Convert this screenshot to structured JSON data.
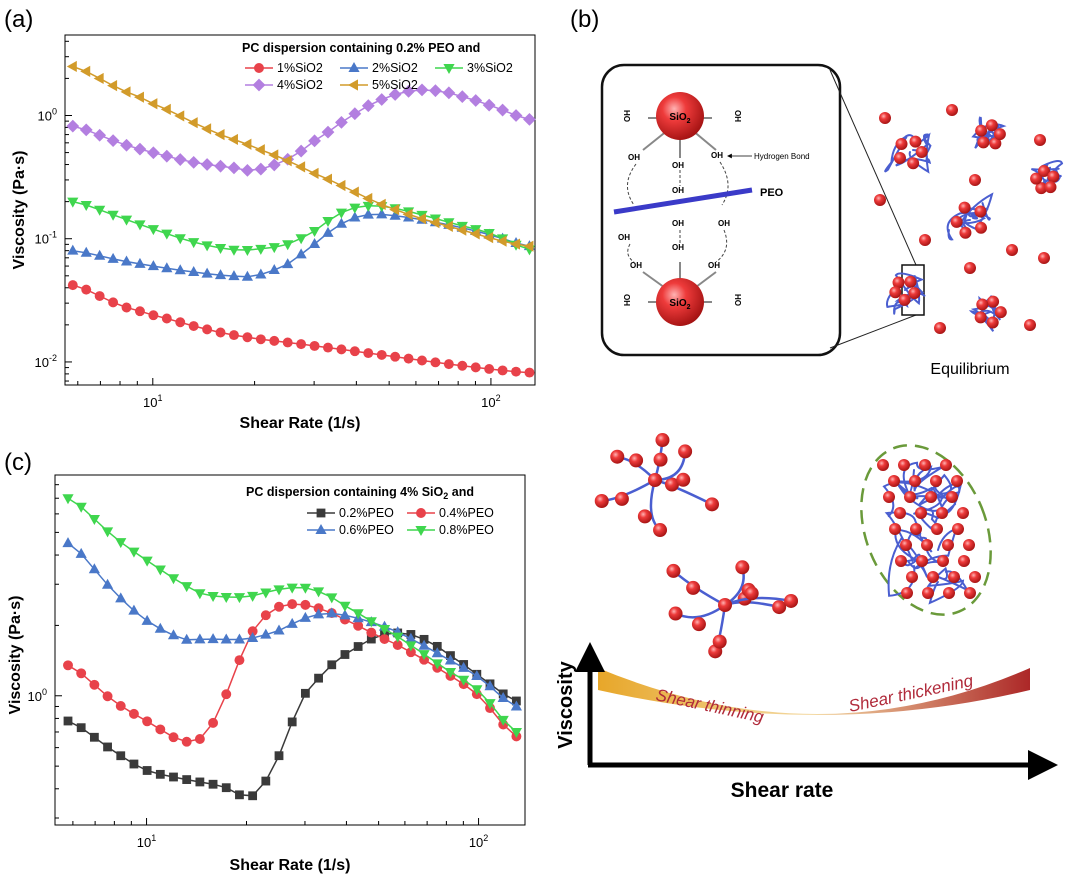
{
  "panels": {
    "a": "(a)",
    "b": "(b)",
    "c": "(c)"
  },
  "chart_data": [
    {
      "id": "a",
      "type": "line",
      "scale": "log-log",
      "title": "PC dispersion containing 0.2% PEO and",
      "xlabel": "Shear Rate (1/s)",
      "ylabel": "Viscosity (Pa·s)",
      "xlim": [
        5.5,
        135
      ],
      "ylim": [
        0.0065,
        4.5
      ],
      "xticks": [
        {
          "base": "10",
          "exp": "1",
          "value": 10
        },
        {
          "base": "10",
          "exp": "2",
          "value": 100
        }
      ],
      "yticks": [
        {
          "base": "10",
          "exp": "-2",
          "value": 0.01
        },
        {
          "base": "10",
          "exp": "-1",
          "value": 0.1
        },
        {
          "base": "10",
          "exp": "0",
          "value": 1
        }
      ],
      "legend_position": "top-right",
      "series": [
        {
          "name": "1%SiO2",
          "color": "#e8424a",
          "marker": "circle",
          "x": [
            5.8,
            8,
            10,
            15,
            20,
            30,
            50,
            80,
            130
          ],
          "y": [
            0.042,
            0.029,
            0.024,
            0.018,
            0.0155,
            0.0135,
            0.0112,
            0.0094,
            0.0082
          ]
        },
        {
          "name": "2%SiO2",
          "color": "#4a78c8",
          "marker": "triangle-up",
          "x": [
            5.8,
            8,
            10,
            13,
            17,
            20,
            25,
            30,
            35,
            40,
            45,
            50,
            60,
            80,
            100,
            130
          ],
          "y": [
            0.08,
            0.067,
            0.06,
            0.054,
            0.05,
            0.05,
            0.062,
            0.09,
            0.125,
            0.15,
            0.158,
            0.155,
            0.145,
            0.125,
            0.107,
            0.087
          ]
        },
        {
          "name": "3%SiO2",
          "color": "#3fd64e",
          "marker": "triangle-down",
          "x": [
            5.8,
            8,
            10,
            13,
            17,
            20,
            25,
            30,
            35,
            40,
            45,
            50,
            60,
            80,
            100,
            130
          ],
          "y": [
            0.2,
            0.15,
            0.12,
            0.095,
            0.082,
            0.082,
            0.09,
            0.115,
            0.155,
            0.18,
            0.185,
            0.18,
            0.16,
            0.13,
            0.11,
            0.082
          ]
        },
        {
          "name": "4%SiO2",
          "color": "#b37fe0",
          "marker": "diamond",
          "x": [
            5.8,
            8,
            10,
            13,
            17,
            20,
            25,
            30,
            40,
            50,
            60,
            70,
            80,
            100,
            130
          ],
          "y": [
            0.82,
            0.6,
            0.5,
            0.42,
            0.38,
            0.36,
            0.44,
            0.62,
            1.05,
            1.42,
            1.6,
            1.58,
            1.45,
            1.2,
            0.93
          ]
        },
        {
          "name": "5%SiO2",
          "color": "#d29b2a",
          "marker": "triangle-left",
          "x": [
            5.8,
            8,
            10,
            15,
            20,
            30,
            50,
            80,
            130
          ],
          "y": [
            2.5,
            1.65,
            1.25,
            0.75,
            0.55,
            0.34,
            0.18,
            0.12,
            0.087
          ]
        }
      ]
    },
    {
      "id": "c",
      "type": "line",
      "scale": "log-log",
      "title": "PC dispersion containing 4% SiO",
      "title_sub": "2",
      "title_tail": " and",
      "xlabel": "Shear Rate (1/s)",
      "ylabel": "Viscosity (Pa·s)",
      "xlim": [
        5.3,
        138
      ],
      "ylim": [
        0.28,
        8.8
      ],
      "xticks": [
        {
          "base": "10",
          "exp": "1",
          "value": 10
        },
        {
          "base": "10",
          "exp": "2",
          "value": 100
        }
      ],
      "yticks": [
        {
          "base": "10",
          "exp": "0",
          "value": 1
        }
      ],
      "legend_position": "top-right",
      "series": [
        {
          "name": "0.2%PEO",
          "color": "#3a3a3a",
          "marker": "square",
          "x": [
            5.8,
            8,
            10,
            13,
            17,
            20,
            22,
            25,
            28,
            30,
            35,
            40,
            50,
            60,
            70,
            80,
            100,
            130
          ],
          "y": [
            0.78,
            0.58,
            0.48,
            0.44,
            0.41,
            0.37,
            0.4,
            0.55,
            0.82,
            1.02,
            1.3,
            1.52,
            1.8,
            1.85,
            1.72,
            1.52,
            1.22,
            0.95
          ]
        },
        {
          "name": "0.4%PEO",
          "color": "#e8424a",
          "marker": "circle",
          "x": [
            5.8,
            8,
            10,
            13,
            15,
            17,
            20,
            22,
            25,
            28,
            30,
            35,
            40,
            50,
            60,
            80,
            100,
            130
          ],
          "y": [
            1.35,
            0.95,
            0.78,
            0.64,
            0.68,
            0.95,
            1.65,
            2.1,
            2.4,
            2.47,
            2.45,
            2.3,
            2.1,
            1.8,
            1.58,
            1.25,
            1.0,
            0.67
          ]
        },
        {
          "name": "0.6%PEO",
          "color": "#4a78c8",
          "marker": "triangle-up",
          "x": [
            5.8,
            8,
            10,
            13,
            15,
            20,
            25,
            30,
            35,
            40,
            50,
            60,
            80,
            100,
            130
          ],
          "y": [
            4.5,
            2.8,
            2.1,
            1.75,
            1.75,
            1.75,
            1.9,
            2.15,
            2.25,
            2.2,
            2.02,
            1.8,
            1.45,
            1.2,
            0.9
          ]
        },
        {
          "name": "0.8%PEO",
          "color": "#3fd64e",
          "marker": "triangle-down",
          "x": [
            5.8,
            8,
            10,
            13,
            15,
            20,
            25,
            30,
            35,
            40,
            50,
            60,
            80,
            100,
            130
          ],
          "y": [
            7.0,
            4.8,
            3.8,
            3.0,
            2.7,
            2.65,
            2.85,
            2.9,
            2.7,
            2.4,
            2.0,
            1.7,
            1.3,
            1.05,
            0.7
          ]
        }
      ]
    }
  ],
  "schematic": {
    "hydrogen_bond_label": "Hydrogen Bond",
    "peo_label": "PEO",
    "sio2_label": "SiO",
    "sio2_sub": "2",
    "oh_label": "OH",
    "ho_label": "HO",
    "equilibrium_label": "Equilibrium",
    "shear_thinning_label": "Shear thinning",
    "shear_thickening_label": "Shear thickening",
    "viscosity_axis_label": "Viscosity",
    "shear_rate_axis_label": "Shear rate",
    "colors": {
      "particle": "#e53935",
      "chain": "#4a5ed0",
      "thinning": "#e0a020",
      "thickening": "#a82020",
      "cluster": "#6a9a3a"
    }
  }
}
